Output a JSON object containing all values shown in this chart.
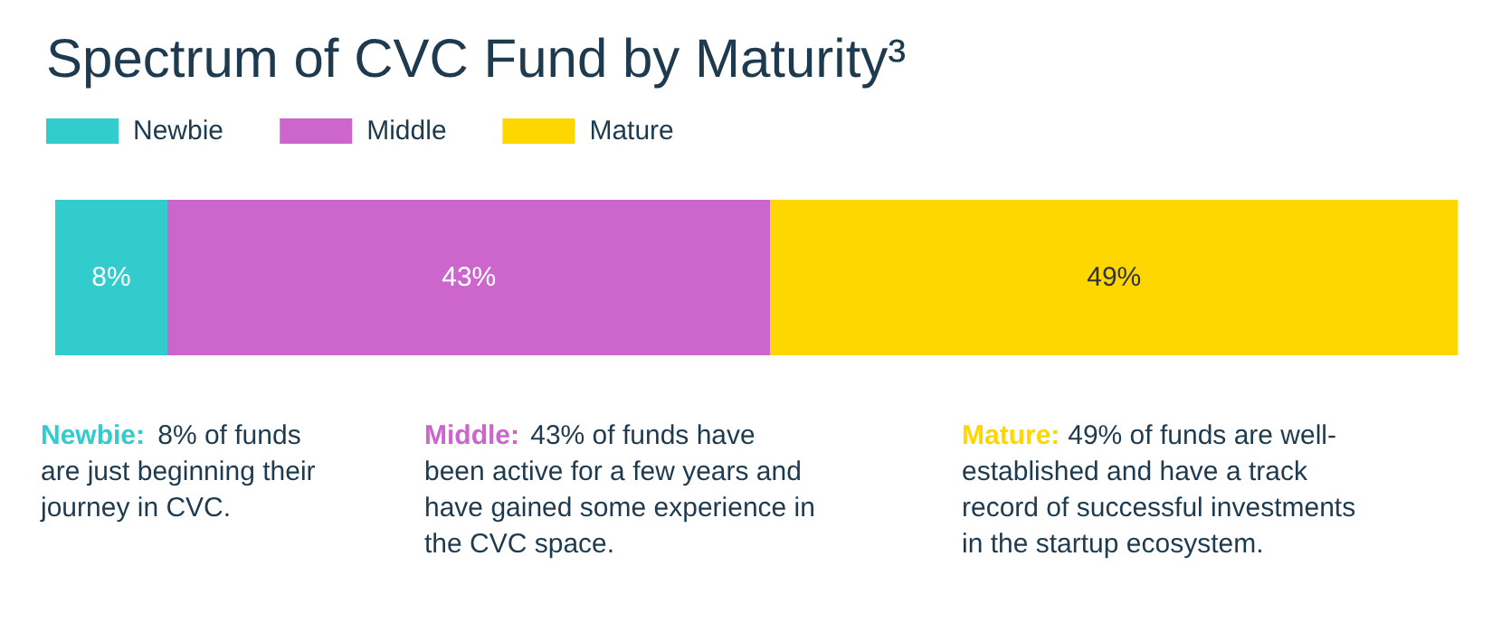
{
  "chart_data": {
    "type": "bar",
    "orientation": "horizontal",
    "stacked": true,
    "legend": "top left",
    "title": "Spectrum of CVC Fund by Maturity³",
    "categories": [
      null
    ],
    "series": [
      {
        "name": "Newbie",
        "color": "#33cccc",
        "values": [
          8
        ],
        "value_labels": [
          "8%"
        ]
      },
      {
        "name": "Middle",
        "color": "#cc66cc",
        "values": [
          43
        ],
        "value_labels": [
          "43%"
        ]
      },
      {
        "name": "Mature",
        "color": "#ffd700",
        "values": [
          49
        ],
        "value_labels": [
          "49%"
        ]
      }
    ],
    "annotations": [
      "Newbie: 8% of funds are just beginning their journey in CVC.",
      "Middle: 43% of funds have been active for a few years and have gained some experience in the CVC space.",
      "Mature: 49% of funds are well-established and have a track record of successful investments in the startup ecosystem."
    ]
  }
}
